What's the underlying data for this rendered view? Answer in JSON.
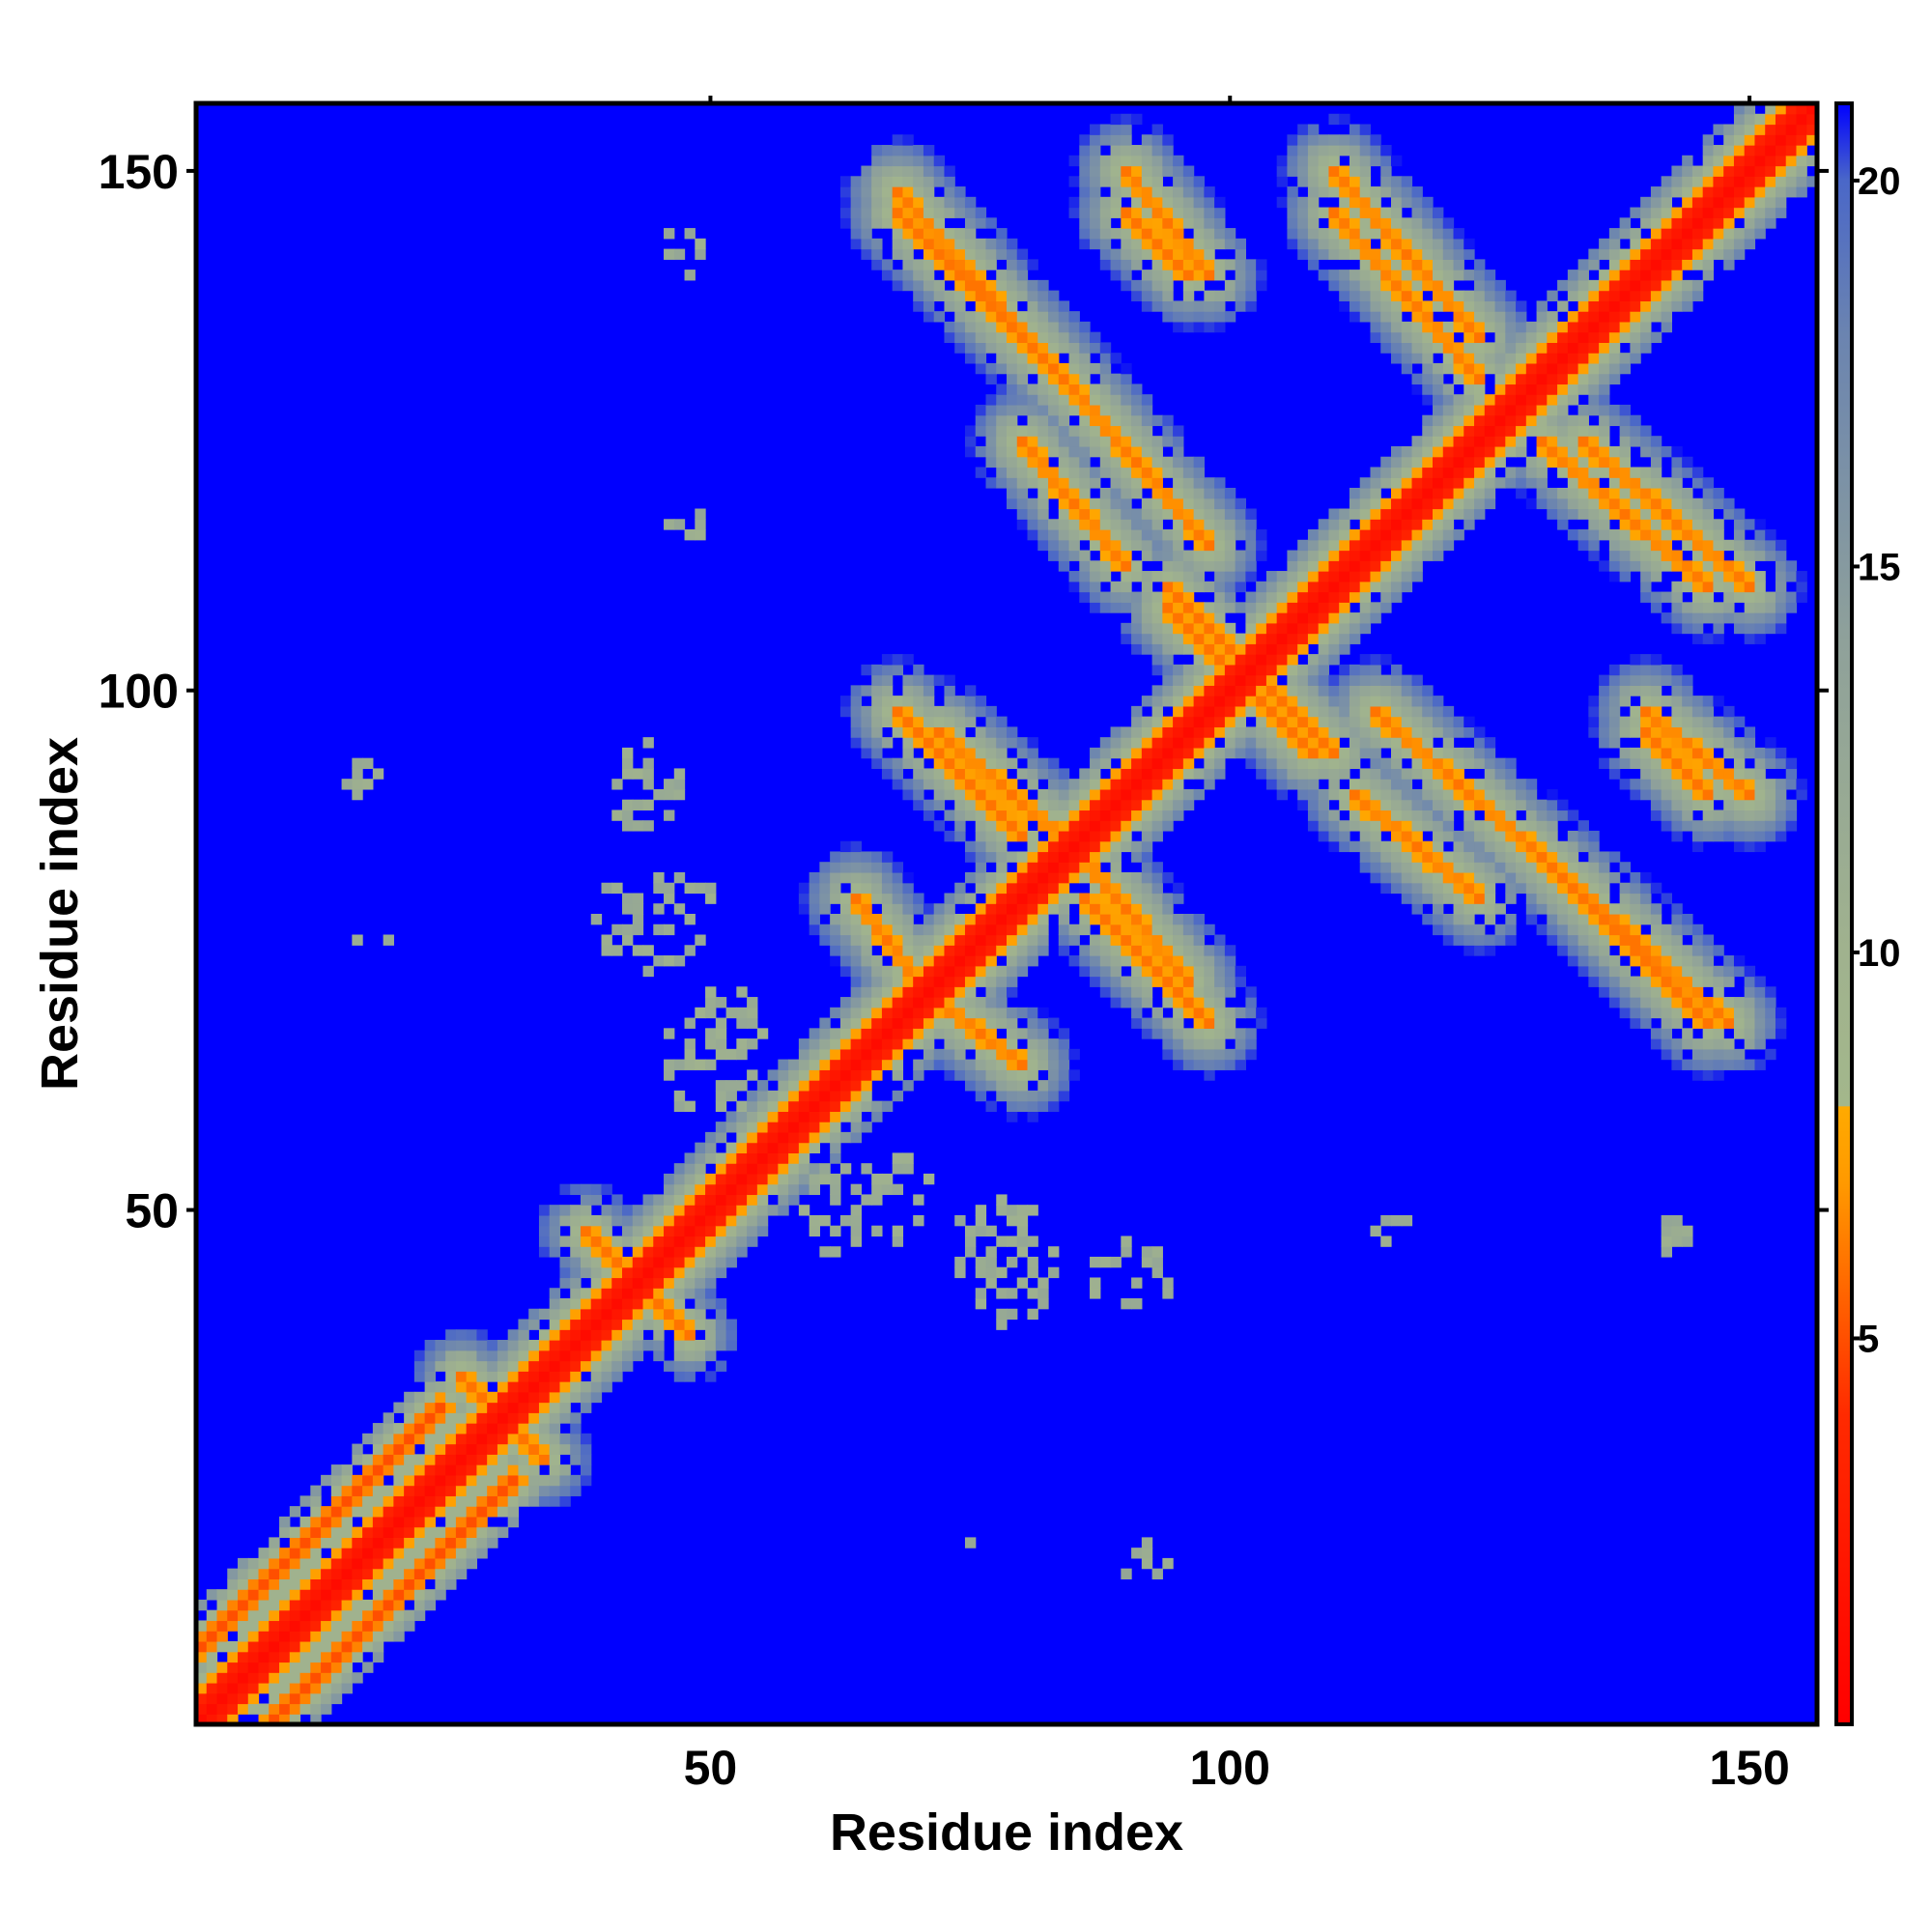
{
  "chart_data": {
    "type": "heatmap",
    "title": "",
    "xlabel": "Residue index",
    "ylabel": "Residue index",
    "xlim": [
      1,
      156
    ],
    "ylim": [
      1,
      156
    ],
    "x_ticks": [
      50,
      100,
      150
    ],
    "y_ticks": [
      50,
      100,
      150
    ],
    "colorbar": {
      "range": [
        0,
        21
      ],
      "ticks": [
        5,
        10,
        15,
        20
      ],
      "stops": [
        {
          "value": 0,
          "color": "#ff0000"
        },
        {
          "value": 4,
          "color": "#ff2a00"
        },
        {
          "value": 7,
          "color": "#ff9900"
        },
        {
          "value": 8,
          "color": "#ffaa00"
        },
        {
          "value": 8.01,
          "color": "#a3b78b"
        },
        {
          "value": 10,
          "color": "#a0b28e"
        },
        {
          "value": 14,
          "color": "#8fa19a"
        },
        {
          "value": 18,
          "color": "#6b84b0"
        },
        {
          "value": 20,
          "color": "#4a67c8"
        },
        {
          "value": 21,
          "color": "#0000ff"
        }
      ],
      "background_color": "#0000ff"
    },
    "value_meaning": "pairwise residue distance",
    "features": {
      "diagonal": {
        "from": 1,
        "to": 156,
        "core_width": 2,
        "halo_width": 3.5
      },
      "parallel_bands": [
        {
          "start": [
            1,
            8
          ],
          "end": [
            24,
            31
          ],
          "width": 3.5
        },
        {
          "start": [
            8,
            1
          ],
          "end": [
            31,
            24
          ],
          "width": 3.5
        }
      ],
      "antiparallel_bands": [
        {
          "x1": 68,
          "y1": 148,
          "x2": 84,
          "y2": 130,
          "width": 3
        },
        {
          "x1": 84,
          "y1": 130,
          "x2": 98,
          "y2": 114,
          "width": 3
        },
        {
          "x1": 90,
          "y1": 150,
          "x2": 98,
          "y2": 140,
          "width": 3
        },
        {
          "x1": 110,
          "y1": 150,
          "x2": 124,
          "y2": 134,
          "width": 3
        },
        {
          "x1": 130,
          "y1": 124,
          "x2": 146,
          "y2": 110,
          "width": 3
        },
        {
          "x1": 72,
          "y1": 96,
          "x2": 86,
          "y2": 84,
          "width": 3
        },
        {
          "x1": 86,
          "y1": 80,
          "x2": 98,
          "y2": 68,
          "width": 3
        },
        {
          "x1": 100,
          "y1": 104,
          "x2": 110,
          "y2": 94,
          "width": 3
        },
        {
          "x1": 112,
          "y1": 90,
          "x2": 124,
          "y2": 80,
          "width": 3
        },
        {
          "x1": 130,
          "y1": 84,
          "x2": 146,
          "y2": 68,
          "width": 3
        },
        {
          "x1": 140,
          "y1": 96,
          "x2": 146,
          "y2": 90,
          "width": 3
        },
        {
          "x1": 94,
          "y1": 108,
          "x2": 100,
          "y2": 102,
          "width": 3
        },
        {
          "x1": 64,
          "y1": 80,
          "x2": 70,
          "y2": 72,
          "width": 3
        },
        {
          "x1": 38,
          "y1": 48,
          "x2": 44,
          "y2": 42,
          "width": 2.5
        },
        {
          "x1": 26,
          "y1": 34,
          "x2": 32,
          "y2": 28,
          "width": 2.5
        }
      ],
      "sparse_patches": [
        {
          "x": 44,
          "y": 92,
          "r": 3
        },
        {
          "x": 46,
          "y": 78,
          "r": 5
        },
        {
          "x": 52,
          "y": 68,
          "r": 4
        },
        {
          "x": 64,
          "y": 50,
          "r": 5
        },
        {
          "x": 78,
          "y": 44,
          "r": 5
        },
        {
          "x": 90,
          "y": 44,
          "r": 4
        },
        {
          "x": 116,
          "y": 48,
          "r": 2
        },
        {
          "x": 142,
          "y": 48,
          "r": 2
        },
        {
          "x": 48,
          "y": 116,
          "r": 2
        },
        {
          "x": 47,
          "y": 143,
          "r": 1.5
        },
        {
          "x": 16,
          "y": 92,
          "r": 2
        },
        {
          "x": 18,
          "y": 76,
          "r": 1
        },
        {
          "x": 76,
          "y": 17,
          "r": 1
        },
        {
          "x": 90,
          "y": 16,
          "r": 1.5
        }
      ]
    }
  }
}
